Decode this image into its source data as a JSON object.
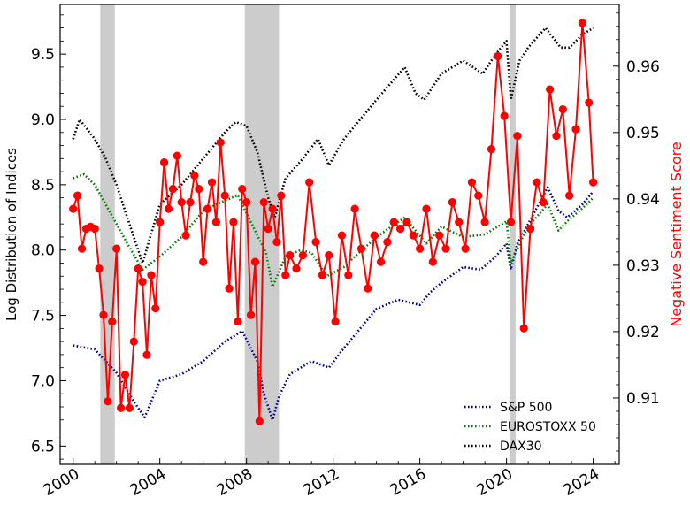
{
  "chart_data": {
    "type": "line",
    "title": "",
    "ylabel_left": "Log Distribution of Indices",
    "ylabel_right": "Negative Sentiment Score",
    "xlim": [
      1999.4,
      2025.2
    ],
    "ylim_left": [
      6.36,
      9.88
    ],
    "ylim_right": [
      0.9,
      0.9693
    ],
    "x_ticks": [
      2000,
      2004,
      2008,
      2012,
      2016,
      2020,
      2024
    ],
    "x_tick_labels": [
      "2000",
      "2004",
      "2008",
      "2012",
      "2016",
      "2020",
      "2024"
    ],
    "y_left_ticks": [
      6.5,
      7.0,
      7.5,
      8.0,
      8.5,
      9.0,
      9.5
    ],
    "y_left_tick_labels": [
      "6.5",
      "7.0",
      "7.5",
      "8.0",
      "8.5",
      "9.0",
      "9.5"
    ],
    "y_right_ticks": [
      0.91,
      0.92,
      0.93,
      0.94,
      0.95,
      0.96
    ],
    "y_right_tick_labels": [
      "0.91",
      "0.92",
      "0.93",
      "0.94",
      "0.95",
      "0.96"
    ],
    "grid": false,
    "legend_position": "lower-right",
    "recession_bands": [
      [
        2001.25,
        2001.92
      ],
      [
        2007.92,
        2009.5
      ],
      [
        2020.17,
        2020.42
      ]
    ],
    "series": [
      {
        "name": "S&P 500",
        "axis": "left",
        "style": "dotted",
        "color": "#00008b",
        "x": [
          2000.0,
          2001.0,
          2002.0,
          2002.8,
          2003.3,
          2004.0,
          2005.0,
          2006.0,
          2007.0,
          2007.8,
          2008.5,
          2008.8,
          2009.2,
          2009.5,
          2010.0,
          2011.0,
          2011.8,
          2012.5,
          2013.0,
          2014.0,
          2015.0,
          2016.0,
          2016.5,
          2017.0,
          2018.0,
          2018.8,
          2019.5,
          2020.0,
          2020.2,
          2020.5,
          2021.0,
          2021.9,
          2022.4,
          2022.8,
          2023.5,
          2024.0
        ],
        "y": [
          7.27,
          7.24,
          7.06,
          6.84,
          6.72,
          7.0,
          7.05,
          7.15,
          7.3,
          7.38,
          7.15,
          6.9,
          6.7,
          6.88,
          7.05,
          7.15,
          7.1,
          7.25,
          7.35,
          7.55,
          7.62,
          7.58,
          7.68,
          7.75,
          7.87,
          7.85,
          7.95,
          8.05,
          7.85,
          8.05,
          8.2,
          8.48,
          8.3,
          8.25,
          8.35,
          8.45
        ]
      },
      {
        "name": "EUROSTOXX 50",
        "axis": "left",
        "style": "dotted",
        "color": "#007f00",
        "x": [
          2000.0,
          2000.5,
          2001.0,
          2001.5,
          2002.0,
          2002.5,
          2003.2,
          2004.0,
          2005.0,
          2006.0,
          2007.0,
          2007.6,
          2008.3,
          2008.9,
          2009.2,
          2009.8,
          2010.5,
          2011.0,
          2011.7,
          2012.5,
          2013.0,
          2014.0,
          2015.3,
          2016.3,
          2017.0,
          2018.0,
          2019.0,
          2020.0,
          2020.2,
          2020.6,
          2021.0,
          2021.9,
          2022.4,
          2022.8,
          2023.5,
          2024.0
        ],
        "y": [
          8.55,
          8.58,
          8.5,
          8.35,
          8.2,
          8.05,
          7.85,
          7.95,
          8.1,
          8.3,
          8.38,
          8.42,
          8.18,
          7.98,
          7.72,
          7.95,
          8.0,
          7.98,
          7.8,
          7.87,
          7.95,
          8.1,
          8.25,
          8.05,
          8.18,
          8.1,
          8.12,
          8.22,
          7.9,
          8.05,
          8.18,
          8.35,
          8.15,
          8.22,
          8.32,
          8.4
        ]
      },
      {
        "name": "DAX30",
        "axis": "left",
        "style": "dotted",
        "color": "#000000",
        "x": [
          2000.0,
          2000.3,
          2001.0,
          2001.5,
          2002.0,
          2002.5,
          2003.2,
          2004.0,
          2005.0,
          2006.0,
          2007.0,
          2007.5,
          2008.0,
          2008.5,
          2009.0,
          2009.3,
          2009.8,
          2010.5,
          2011.3,
          2011.8,
          2012.5,
          2013.0,
          2014.0,
          2015.3,
          2015.8,
          2016.2,
          2017.0,
          2018.0,
          2018.9,
          2019.5,
          2020.0,
          2020.2,
          2020.6,
          2021.0,
          2021.8,
          2022.5,
          2022.9,
          2023.5,
          2024.0
        ],
        "y": [
          8.85,
          9.0,
          8.85,
          8.7,
          8.5,
          8.25,
          7.9,
          8.35,
          8.5,
          8.7,
          8.9,
          8.98,
          8.95,
          8.75,
          8.4,
          8.25,
          8.55,
          8.68,
          8.85,
          8.65,
          8.85,
          8.95,
          9.15,
          9.4,
          9.2,
          9.15,
          9.35,
          9.45,
          9.35,
          9.5,
          9.6,
          9.15,
          9.45,
          9.55,
          9.7,
          9.55,
          9.55,
          9.65,
          9.7
        ]
      },
      {
        "name": "",
        "axis": "right",
        "style": "solid-marker",
        "color": "#ff0000",
        "x": [
          2000.0,
          2000.2,
          2000.4,
          2000.6,
          2000.8,
          2001.0,
          2001.2,
          2001.4,
          2001.6,
          2001.8,
          2002.0,
          2002.2,
          2002.4,
          2002.6,
          2002.8,
          2003.0,
          2003.2,
          2003.4,
          2003.6,
          2003.8,
          2004.0,
          2004.2,
          2004.4,
          2004.6,
          2004.8,
          2005.0,
          2005.2,
          2005.4,
          2005.6,
          2005.8,
          2006.0,
          2006.2,
          2006.4,
          2006.6,
          2006.8,
          2007.0,
          2007.2,
          2007.4,
          2007.6,
          2007.8,
          2008.0,
          2008.2,
          2008.4,
          2008.6,
          2008.8,
          2009.0,
          2009.2,
          2009.4,
          2009.6,
          2009.8,
          2010.0,
          2010.3,
          2010.6,
          2010.9,
          2011.2,
          2011.5,
          2011.8,
          2012.1,
          2012.4,
          2012.7,
          2013.0,
          2013.3,
          2013.6,
          2013.9,
          2014.2,
          2014.5,
          2014.8,
          2015.1,
          2015.4,
          2015.7,
          2016.0,
          2016.3,
          2016.6,
          2016.9,
          2017.2,
          2017.5,
          2017.8,
          2018.1,
          2018.4,
          2018.7,
          2019.0,
          2019.3,
          2019.6,
          2019.9,
          2020.2,
          2020.5,
          2020.8,
          2021.1,
          2021.4,
          2021.7,
          2022.0,
          2022.3,
          2022.6,
          2022.9,
          2023.2,
          2023.5,
          2023.8,
          2024.0
        ],
        "y": [
          0.9385,
          0.9405,
          0.9325,
          0.9355,
          0.9358,
          0.9355,
          0.9295,
          0.9225,
          0.9095,
          0.9215,
          0.9325,
          0.9085,
          0.9135,
          0.9085,
          0.9185,
          0.9295,
          0.9275,
          0.9165,
          0.9285,
          0.9235,
          0.9365,
          0.9455,
          0.9385,
          0.9415,
          0.9465,
          0.9395,
          0.9345,
          0.9395,
          0.9435,
          0.9415,
          0.9305,
          0.9385,
          0.9425,
          0.9365,
          0.9485,
          0.9405,
          0.9265,
          0.9365,
          0.9215,
          0.9415,
          0.9395,
          0.9225,
          0.9305,
          0.9065,
          0.9395,
          0.9355,
          0.9385,
          0.9335,
          0.9405,
          0.9285,
          0.9315,
          0.9295,
          0.9315,
          0.9425,
          0.9335,
          0.9285,
          0.9315,
          0.9215,
          0.9345,
          0.9285,
          0.9385,
          0.9325,
          0.9265,
          0.9345,
          0.9305,
          0.9335,
          0.9365,
          0.9355,
          0.9365,
          0.9345,
          0.9325,
          0.9385,
          0.9305,
          0.9345,
          0.9325,
          0.9395,
          0.9365,
          0.9325,
          0.9425,
          0.9405,
          0.9365,
          0.9475,
          0.9615,
          0.9525,
          0.9365,
          0.9495,
          0.9205,
          0.9355,
          0.9425,
          0.9395,
          0.9565,
          0.9495,
          0.9535,
          0.9405,
          0.9505,
          0.9665,
          0.9545,
          0.9425
        ]
      }
    ]
  },
  "colors": {
    "recession_band": "#cccccc",
    "right_axis_label": "#ff0000"
  }
}
